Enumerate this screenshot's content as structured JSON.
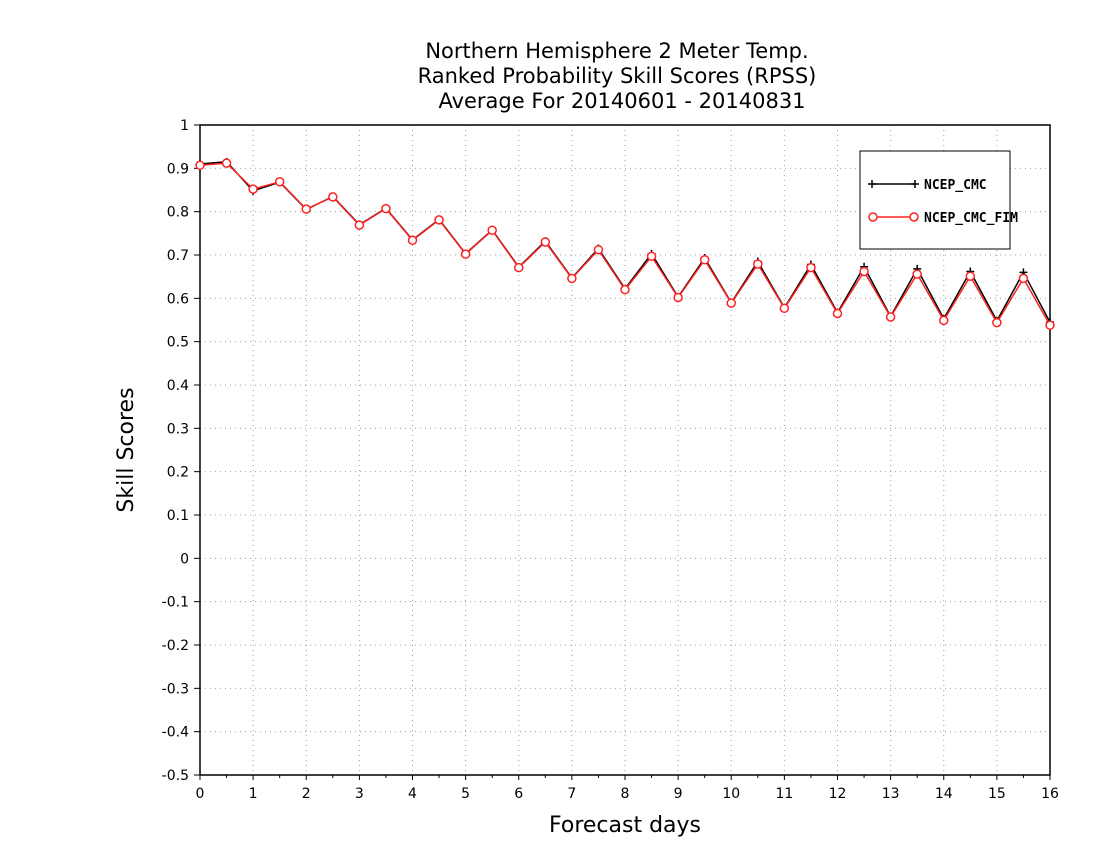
{
  "chart_data": {
    "type": "line",
    "title": [
      "Northern Hemisphere 2 Meter Temp.",
      "Ranked Probability Skill Scores (RPSS)",
      "Average For 20140601 - 20140831"
    ],
    "xlabel": "Forecast days",
    "ylabel": "Skill Scores",
    "xlim": [
      0,
      16
    ],
    "ylim": [
      -0.5,
      1
    ],
    "xticks": [
      "0",
      "1",
      "2",
      "3",
      "4",
      "5",
      "6",
      "7",
      "8",
      "9",
      "10",
      "11",
      "12",
      "13",
      "14",
      "15",
      "16"
    ],
    "yticks": [
      "1",
      "0.9",
      "0.8",
      "0.7",
      "0.6",
      "0.5",
      "0.4",
      "0.3",
      "0.2",
      "0.1",
      "0",
      "-0.1",
      "-0.2",
      "-0.3",
      "-0.4",
      "-0.5"
    ],
    "grid": true,
    "legend_position": "top-right",
    "x": [
      0,
      0.5,
      1,
      1.5,
      2,
      2.5,
      3,
      3.5,
      4,
      4.5,
      5,
      5.5,
      6,
      6.5,
      7,
      7.5,
      8,
      8.5,
      9,
      9.5,
      10,
      10.5,
      11,
      11.5,
      12,
      12.5,
      13,
      13.5,
      14,
      14.5,
      15,
      15.5,
      16
    ],
    "series": [
      {
        "name": "NCEP_CMC",
        "color": "#000000",
        "marker": "plus",
        "values": [
          0.91,
          0.915,
          0.848,
          0.868,
          0.805,
          0.835,
          0.77,
          0.808,
          0.735,
          0.782,
          0.703,
          0.758,
          0.672,
          0.732,
          0.647,
          0.715,
          0.622,
          0.703,
          0.603,
          0.693,
          0.59,
          0.685,
          0.578,
          0.678,
          0.567,
          0.673,
          0.558,
          0.668,
          0.553,
          0.662,
          0.548,
          0.66,
          0.545
        ]
      },
      {
        "name": "NCEP_CMC_FIM",
        "color": "#ff2020",
        "marker": "circle",
        "values": [
          0.907,
          0.912,
          0.852,
          0.869,
          0.806,
          0.834,
          0.769,
          0.807,
          0.734,
          0.781,
          0.702,
          0.757,
          0.671,
          0.73,
          0.646,
          0.712,
          0.62,
          0.697,
          0.602,
          0.689,
          0.589,
          0.679,
          0.577,
          0.671,
          0.565,
          0.662,
          0.557,
          0.656,
          0.549,
          0.651,
          0.544,
          0.646,
          0.538
        ]
      }
    ]
  }
}
